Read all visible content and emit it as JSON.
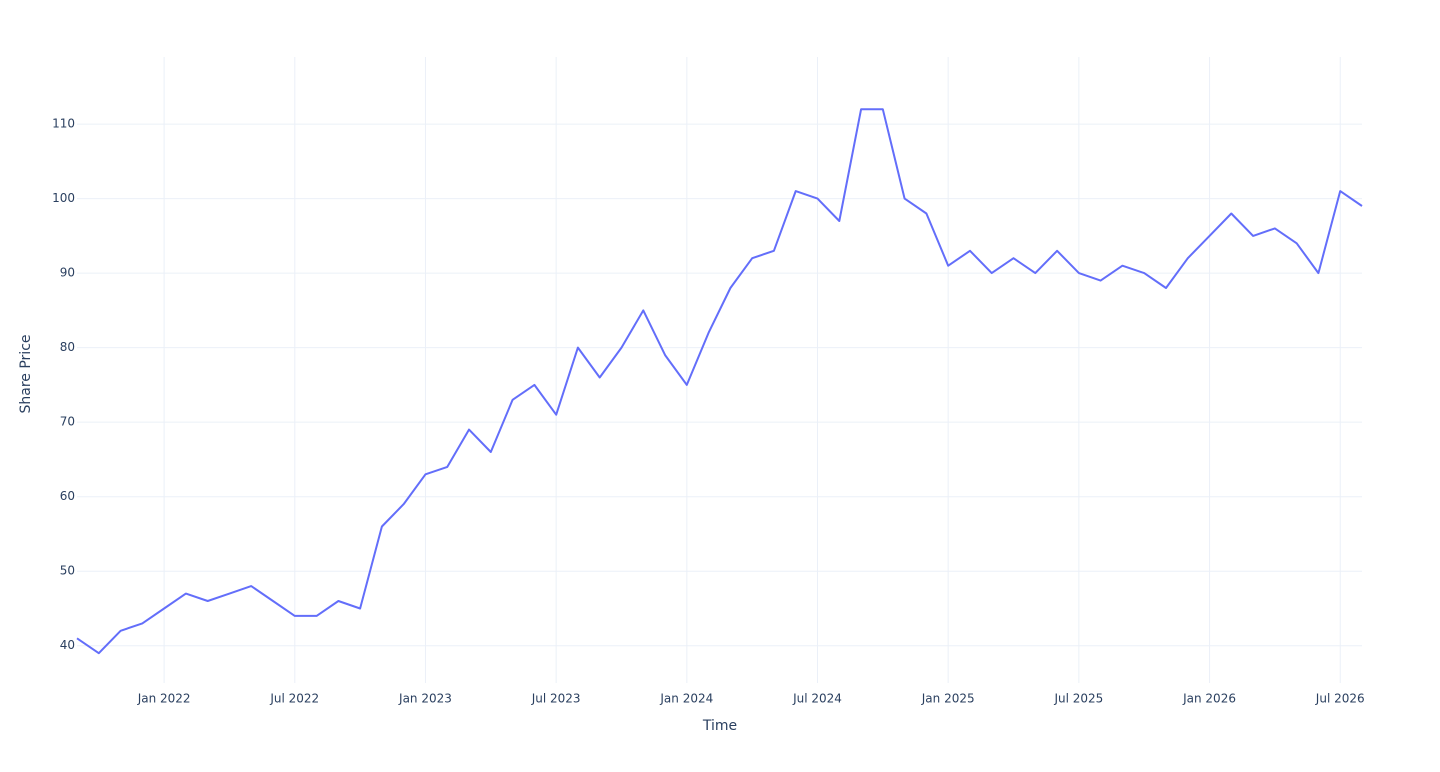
{
  "chart_data": {
    "type": "line",
    "x_label": "Time",
    "y_label": "Share Price",
    "x": [
      "2021-09",
      "2021-10",
      "2021-11",
      "2021-12",
      "2022-01",
      "2022-02",
      "2022-03",
      "2022-04",
      "2022-05",
      "2022-06",
      "2022-07",
      "2022-08",
      "2022-09",
      "2022-10",
      "2022-11",
      "2022-12",
      "2023-01",
      "2023-02",
      "2023-03",
      "2023-04",
      "2023-05",
      "2023-06",
      "2023-07",
      "2023-08",
      "2023-09",
      "2023-10",
      "2023-11",
      "2023-12",
      "2024-01",
      "2024-02",
      "2024-03",
      "2024-04",
      "2024-05",
      "2024-06",
      "2024-07",
      "2024-08",
      "2024-09",
      "2024-10",
      "2024-11",
      "2024-12",
      "2025-01",
      "2025-02",
      "2025-03",
      "2025-04",
      "2025-05",
      "2025-06",
      "2025-07",
      "2025-08",
      "2025-09",
      "2025-10",
      "2025-11",
      "2025-12",
      "2026-01",
      "2026-02",
      "2026-03",
      "2026-04",
      "2026-05",
      "2026-06",
      "2026-07",
      "2026-08"
    ],
    "series": [
      {
        "color": "#636efa",
        "values": [
          41,
          39,
          42,
          43,
          45,
          47,
          46,
          47,
          48,
          46,
          44,
          44,
          46,
          45,
          56,
          59,
          63,
          64,
          69,
          66,
          73,
          75,
          71,
          80,
          76,
          80,
          85,
          79,
          75,
          82,
          88,
          92,
          93,
          101,
          100,
          97,
          112,
          112,
          100,
          98,
          91,
          93,
          90,
          92,
          90,
          93,
          90,
          89,
          91,
          90,
          88,
          92,
          95,
          98,
          95,
          96,
          94,
          90,
          101,
          99
        ]
      }
    ],
    "xlim": [
      "2021-09",
      "2026-08"
    ],
    "xticks": [
      {
        "value": "2022-01",
        "label": "Jan 2022"
      },
      {
        "value": "2022-07",
        "label": "Jul 2022"
      },
      {
        "value": "2023-01",
        "label": "Jan 2023"
      },
      {
        "value": "2023-07",
        "label": "Jul 2023"
      },
      {
        "value": "2024-01",
        "label": "Jan 2024"
      },
      {
        "value": "2024-07",
        "label": "Jul 2024"
      },
      {
        "value": "2025-01",
        "label": "Jan 2025"
      },
      {
        "value": "2025-07",
        "label": "Jul 2025"
      },
      {
        "value": "2026-01",
        "label": "Jan 2026"
      },
      {
        "value": "2026-07",
        "label": "Jul 2026"
      }
    ],
    "ylim": [
      35,
      119
    ],
    "yticks": [
      40,
      50,
      60,
      70,
      80,
      90,
      100,
      110
    ],
    "grid": true
  }
}
